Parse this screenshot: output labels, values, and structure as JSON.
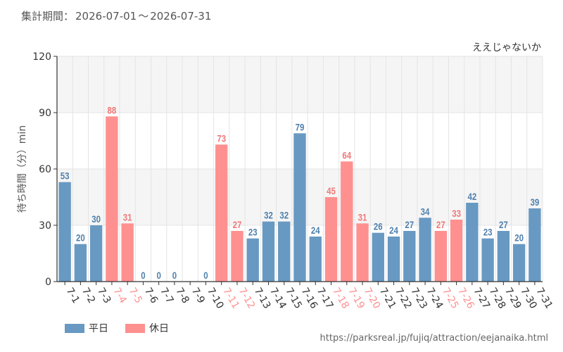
{
  "header": {
    "label": "集計期間：",
    "start": "2026-07-01",
    "separator": "～",
    "end": "2026-07-31"
  },
  "source_url": "https://parksreal.jp/fujiq/attraction/eejanaika.html",
  "colors": {
    "weekday": "#6899c2",
    "holiday": "#ff9090",
    "weekday_text": "#4f80ad",
    "holiday_text": "#f07878",
    "band": "#f5f5f5",
    "grid": "#e4e4e4",
    "axis": "#333333"
  },
  "chart_data": {
    "type": "bar",
    "title": "ええじゃないか",
    "ylabel": "待ち時間（分）min",
    "ylim": [
      0,
      120
    ],
    "yticks": [
      0,
      30,
      60,
      90,
      120
    ],
    "categories": [
      "7-1",
      "7-2",
      "7-3",
      "7-4",
      "7-5",
      "7-6",
      "7-7",
      "7-8",
      "7-9",
      "7-10",
      "7-11",
      "7-12",
      "7-13",
      "7-14",
      "7-15",
      "7-16",
      "7-17",
      "7-18",
      "7-19",
      "7-20",
      "7-21",
      "7-22",
      "7-23",
      "7-24",
      "7-25",
      "7-26",
      "7-27",
      "7-28",
      "7-29",
      "7-30",
      "7-31"
    ],
    "values": [
      53,
      20,
      30,
      88,
      31,
      0,
      0,
      0,
      null,
      0,
      73,
      27,
      23,
      32,
      32,
      79,
      24,
      45,
      64,
      31,
      26,
      24,
      27,
      34,
      27,
      33,
      42,
      23,
      27,
      20,
      39
    ],
    "day_type": [
      "weekday",
      "weekday",
      "weekday",
      "holiday",
      "holiday",
      "weekday",
      "weekday",
      "weekday",
      "weekday",
      "weekday",
      "holiday",
      "holiday",
      "weekday",
      "weekday",
      "weekday",
      "weekday",
      "weekday",
      "holiday",
      "holiday",
      "holiday",
      "weekday",
      "weekday",
      "weekday",
      "weekday",
      "holiday",
      "holiday",
      "weekday",
      "weekday",
      "weekday",
      "weekday",
      "weekday"
    ],
    "legend": [
      {
        "key": "weekday",
        "label": "平日"
      },
      {
        "key": "holiday",
        "label": "休日"
      }
    ]
  }
}
